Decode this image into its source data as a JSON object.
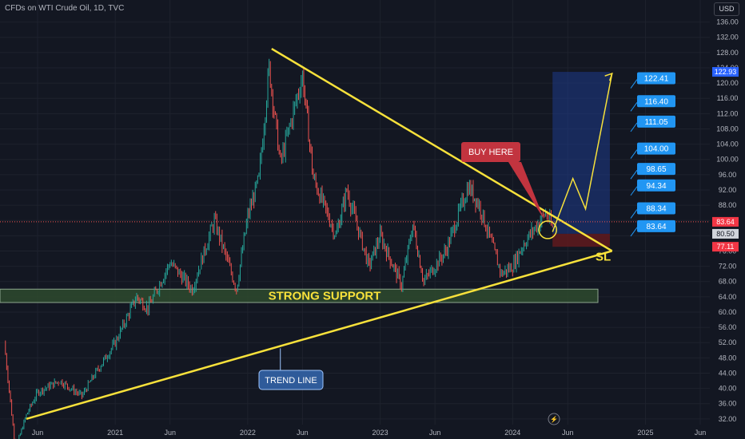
{
  "header": {
    "title": "CFDs on WTI Crude Oil, 1D, TVC",
    "currency": "USD"
  },
  "annotations": {
    "support_label": "STRONG SUPPORT",
    "trend_label": "TREND LINE",
    "buy_label": "BUY HERE",
    "sl_label": "SL"
  },
  "colors": {
    "background": "#131722",
    "up": "#26a69a",
    "down": "#ef5350",
    "trendline": "#f7e13b",
    "target_box": "#1e3a8a",
    "stop_box": "#5c1a1e",
    "target_label": "#2196f3",
    "support_zone": "#2e4a2e",
    "buy_label": "#c2343f",
    "trend_label": "#2f5b9a"
  },
  "chart_data": {
    "type": "candlestick",
    "title": "CFDs on WTI Crude Oil, 1D, TVC",
    "y_axis": {
      "ticks": [
        32,
        36,
        40,
        44,
        48,
        52,
        56,
        60,
        64,
        68,
        72,
        76,
        80,
        84,
        88,
        92,
        96,
        100,
        104,
        108,
        112,
        116,
        120,
        124,
        128,
        132,
        136
      ],
      "range": [
        30.5,
        138
      ]
    },
    "x_axis": {
      "ticks": [
        {
          "label": "Jun",
          "date": "2020-06"
        },
        {
          "label": "2021",
          "date": "2021-01"
        },
        {
          "label": "Jun",
          "date": "2021-06"
        },
        {
          "label": "2022",
          "date": "2022-01"
        },
        {
          "label": "Jun",
          "date": "2022-06"
        },
        {
          "label": "2023",
          "date": "2023-01"
        },
        {
          "label": "Jun",
          "date": "2023-06"
        },
        {
          "label": "2024",
          "date": "2024-01"
        },
        {
          "label": "Jun",
          "date": "2024-06"
        },
        {
          "label": "2025",
          "date": "2025-01"
        },
        {
          "label": "Jun",
          "date": "2025-06"
        }
      ]
    },
    "price_path": [
      {
        "date": "2020-03",
        "price": 52
      },
      {
        "date": "2020-04",
        "price": 24
      },
      {
        "date": "2020-05",
        "price": 33
      },
      {
        "date": "2020-06",
        "price": 39
      },
      {
        "date": "2020-08",
        "price": 42
      },
      {
        "date": "2020-10",
        "price": 38
      },
      {
        "date": "2020-11",
        "price": 43
      },
      {
        "date": "2021-01",
        "price": 52
      },
      {
        "date": "2021-03",
        "price": 64
      },
      {
        "date": "2021-04",
        "price": 61
      },
      {
        "date": "2021-06",
        "price": 73
      },
      {
        "date": "2021-08",
        "price": 66
      },
      {
        "date": "2021-10",
        "price": 84
      },
      {
        "date": "2021-12",
        "price": 66
      },
      {
        "date": "2022-01",
        "price": 85
      },
      {
        "date": "2022-02",
        "price": 95
      },
      {
        "date": "2022-03",
        "price": 124
      },
      {
        "date": "2022-04",
        "price": 99
      },
      {
        "date": "2022-06",
        "price": 122
      },
      {
        "date": "2022-07",
        "price": 95
      },
      {
        "date": "2022-09",
        "price": 80
      },
      {
        "date": "2022-10",
        "price": 92
      },
      {
        "date": "2022-12",
        "price": 72
      },
      {
        "date": "2023-01",
        "price": 80
      },
      {
        "date": "2023-03",
        "price": 67
      },
      {
        "date": "2023-04",
        "price": 83
      },
      {
        "date": "2023-05",
        "price": 68
      },
      {
        "date": "2023-07",
        "price": 76
      },
      {
        "date": "2023-09",
        "price": 93
      },
      {
        "date": "2023-10",
        "price": 88
      },
      {
        "date": "2023-12",
        "price": 70
      },
      {
        "date": "2024-01",
        "price": 72
      },
      {
        "date": "2024-02",
        "price": 78
      },
      {
        "date": "2024-04",
        "price": 86
      },
      {
        "date": "2024-04-20",
        "price": 82
      }
    ],
    "price_labels": [
      {
        "value": 122.93,
        "text": "122.93",
        "color": "#2962ff"
      },
      {
        "value": 83.64,
        "text": "83.64",
        "color": "#f23645"
      },
      {
        "value": 80.5,
        "text": "80.50",
        "color": "#d1d4dc"
      },
      {
        "value": 77.11,
        "text": "77.11",
        "color": "#f23645"
      }
    ],
    "targets": [
      {
        "text": "122.41",
        "price": 122.41
      },
      {
        "text": "116.40",
        "price": 116.4
      },
      {
        "text": "111.05",
        "price": 111.05
      },
      {
        "text": "104.00",
        "price": 104.0
      },
      {
        "text": "98.65",
        "price": 98.65
      },
      {
        "text": "94.34",
        "price": 94.34
      },
      {
        "text": "88.34",
        "price": 88.34
      },
      {
        "text": "83.64",
        "price": 83.64
      }
    ],
    "support_zone": {
      "price_low": 62.5,
      "price_high": 66
    },
    "descending_trendline": [
      {
        "date": "2022-03-08",
        "price": 129
      },
      {
        "date": "2024-10",
        "price": 76
      }
    ],
    "ascending_trendline": [
      {
        "date": "2020-05",
        "price": 32
      },
      {
        "date": "2024-10",
        "price": 76
      }
    ],
    "position": {
      "start_date": "2024-04-20",
      "end_date": "2024-09-25",
      "entry": 80.5,
      "target": 122.93,
      "stop": 77.11
    },
    "projection_path": [
      {
        "date": "2024-04-20",
        "price": 81
      },
      {
        "date": "2024-06-15",
        "price": 95
      },
      {
        "date": "2024-07-20",
        "price": 87
      },
      {
        "date": "2024-10",
        "price": 122.5
      }
    ],
    "current_price": 83.64
  }
}
